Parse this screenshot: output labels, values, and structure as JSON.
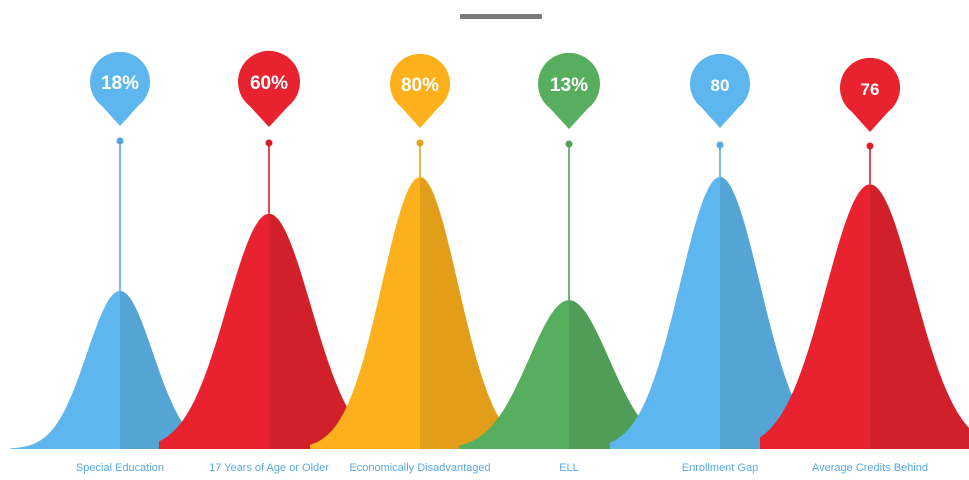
{
  "chart_data": {
    "type": "area",
    "title": "",
    "categories": [
      "Special Education",
      "17 Years of Age or Older",
      "Economically Disadvantaged",
      "ELL",
      "Enrollment Gap",
      "Average Credits Behind"
    ],
    "labels": [
      "18%",
      "60%",
      "80%",
      "13%",
      "80",
      "76"
    ],
    "values": [
      18,
      60,
      80,
      13,
      80,
      76
    ],
    "colors": [
      "#5eb6ee",
      "#e8232f",
      "#fbb01c",
      "#58ae5f",
      "#5eb6ee",
      "#e8232f"
    ],
    "label_color": "#5aa9e6",
    "grid": false,
    "legend": "none"
  }
}
